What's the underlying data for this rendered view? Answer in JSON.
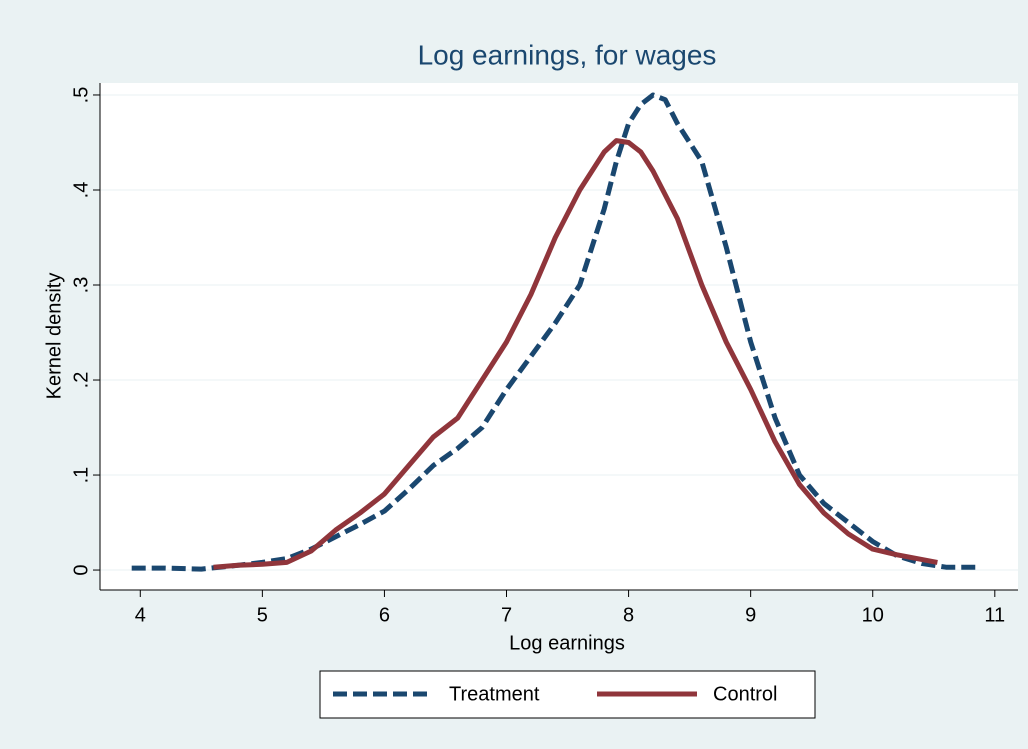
{
  "chart_data": {
    "type": "line",
    "title": "Log earnings, for wages",
    "x_label": "Log earnings",
    "y_label": "Kernel density",
    "xlim": [
      3.67,
      11.19
    ],
    "ylim": [
      -0.021,
      0.5126
    ],
    "xticks": [
      4,
      5,
      6,
      7,
      8,
      9,
      10,
      11
    ],
    "yticks": [
      0,
      {
        "value": 0.1,
        "label": ".1"
      },
      {
        "value": 0.2,
        "label": ".2"
      },
      {
        "value": 0.3,
        "label": ".3"
      },
      {
        "value": 0.4,
        "label": ".4"
      },
      {
        "value": 0.5,
        "label": ".5"
      }
    ],
    "grid": true,
    "legend": "bottom",
    "series": [
      {
        "name": "Treatment",
        "color": "#1a476f",
        "dashed": true,
        "x": [
          3.93,
          4.2,
          4.5,
          4.8,
          5.0,
          5.2,
          5.4,
          5.6,
          5.8,
          6.0,
          6.2,
          6.4,
          6.6,
          6.8,
          7.0,
          7.2,
          7.4,
          7.6,
          7.8,
          7.9,
          8.0,
          8.1,
          8.2,
          8.3,
          8.4,
          8.6,
          8.8,
          9.0,
          9.2,
          9.4,
          9.6,
          9.8,
          10.0,
          10.2,
          10.4,
          10.6,
          10.87
        ],
        "values": [
          0.002,
          0.002,
          0.001,
          0.005,
          0.008,
          0.012,
          0.022,
          0.035,
          0.048,
          0.062,
          0.085,
          0.11,
          0.128,
          0.15,
          0.19,
          0.225,
          0.26,
          0.3,
          0.38,
          0.43,
          0.47,
          0.49,
          0.5,
          0.495,
          0.47,
          0.43,
          0.34,
          0.24,
          0.16,
          0.1,
          0.07,
          0.05,
          0.03,
          0.015,
          0.007,
          0.003,
          0.003
        ]
      },
      {
        "name": "Control",
        "color": "#90353b",
        "dashed": false,
        "x": [
          4.6,
          4.8,
          5.0,
          5.2,
          5.4,
          5.6,
          5.8,
          6.0,
          6.2,
          6.4,
          6.6,
          6.8,
          7.0,
          7.2,
          7.4,
          7.6,
          7.8,
          7.9,
          8.0,
          8.1,
          8.2,
          8.4,
          8.6,
          8.8,
          9.0,
          9.2,
          9.4,
          9.6,
          9.8,
          10.0,
          10.2,
          10.53
        ],
        "values": [
          0.003,
          0.005,
          0.006,
          0.008,
          0.02,
          0.042,
          0.06,
          0.08,
          0.11,
          0.14,
          0.16,
          0.2,
          0.24,
          0.29,
          0.35,
          0.4,
          0.44,
          0.452,
          0.45,
          0.44,
          0.42,
          0.37,
          0.3,
          0.24,
          0.19,
          0.135,
          0.09,
          0.06,
          0.038,
          0.022,
          0.016,
          0.008
        ]
      }
    ]
  }
}
